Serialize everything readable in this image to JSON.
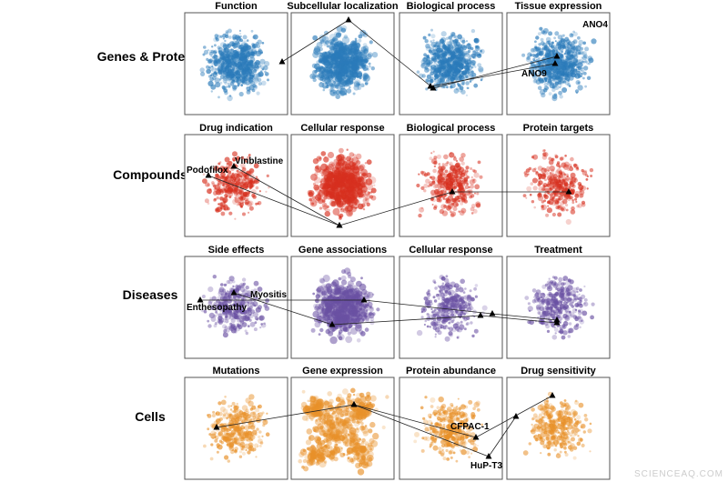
{
  "rows": [
    {
      "label": "Genes & Proteins",
      "panels": [
        "Function",
        "Subcellular localization",
        "Biological process",
        "Tissue expression"
      ],
      "annotations": [
        "ANO4",
        "ANO9"
      ]
    },
    {
      "label": "Compounds",
      "panels": [
        "Drug indication",
        "Cellular response",
        "Biological process",
        "Protein targets"
      ],
      "annotations": [
        "Podofilox",
        "Vinblastine"
      ]
    },
    {
      "label": "Diseases",
      "panels": [
        "Side effects",
        "Gene associations",
        "Cellular response",
        "Treatment"
      ],
      "annotations": [
        "Myositis",
        "Enthesopathy"
      ]
    },
    {
      "label": "Cells",
      "panels": [
        "Mutations",
        "Gene expression",
        "Protein abundance",
        "Drug sensitivity"
      ],
      "annotations": [
        "CFPAC-1",
        "HuP-T3"
      ]
    }
  ],
  "watermark": "SCIENCEAQ.COM"
}
